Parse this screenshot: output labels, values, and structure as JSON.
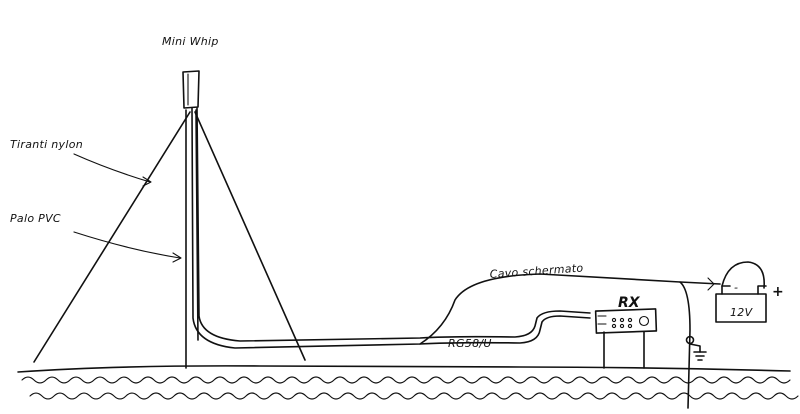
{
  "labels": {
    "antenna": "Mini Whip",
    "guy_lines": "Tiranti nylon",
    "mast": "Palo PVC",
    "ground_wire": "Cavo schermato",
    "coax": "RG58/U",
    "receiver": "RX",
    "battery": "12V",
    "battery_minus": "-",
    "battery_plus": "+"
  }
}
